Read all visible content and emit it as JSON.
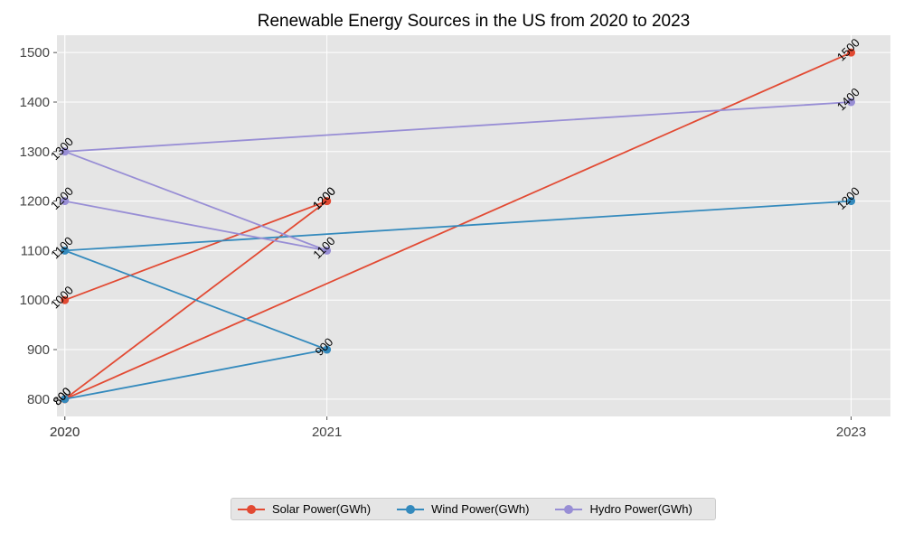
{
  "chart_data": {
    "type": "line",
    "title": "Renewable Energy Sources in the US from 2020 to 2023",
    "xlabel": "",
    "ylabel": "",
    "x_ticks": [
      "2020",
      "2020",
      "2021",
      "2023"
    ],
    "y_ticks": [
      800,
      900,
      1000,
      1100,
      1200,
      1300,
      1400,
      1500
    ],
    "xlim": [
      2019.97,
      2023.15
    ],
    "ylim": [
      765,
      1535
    ],
    "grid": true,
    "legend_position": "bottom-center",
    "series": [
      {
        "name": "Solar Power(GWh)",
        "color": "#E24A33",
        "points": [
          {
            "x": 2020.0,
            "y": 1000
          },
          {
            "x": 2021.0,
            "y": 1200
          },
          {
            "x": 2020.0,
            "y": 800
          },
          {
            "x": 2023.0,
            "y": 1500
          },
          {
            "x": 2020.0,
            "y": 800
          },
          {
            "x": 2021.0,
            "y": 1200
          }
        ]
      },
      {
        "name": "Wind Power(GWh)",
        "color": "#348ABD",
        "points": [
          {
            "x": 2020.0,
            "y": 800
          },
          {
            "x": 2021.0,
            "y": 900
          },
          {
            "x": 2020.0,
            "y": 1100
          },
          {
            "x": 2023.0,
            "y": 1200
          }
        ]
      },
      {
        "name": "Hydro Power(GWh)",
        "color": "#988ED5",
        "points": [
          {
            "x": 2023.0,
            "y": 1400
          },
          {
            "x": 2020.0,
            "y": 1300
          },
          {
            "x": 2021.0,
            "y": 1100
          },
          {
            "x": 2020.0,
            "y": 1200
          }
        ]
      }
    ]
  }
}
